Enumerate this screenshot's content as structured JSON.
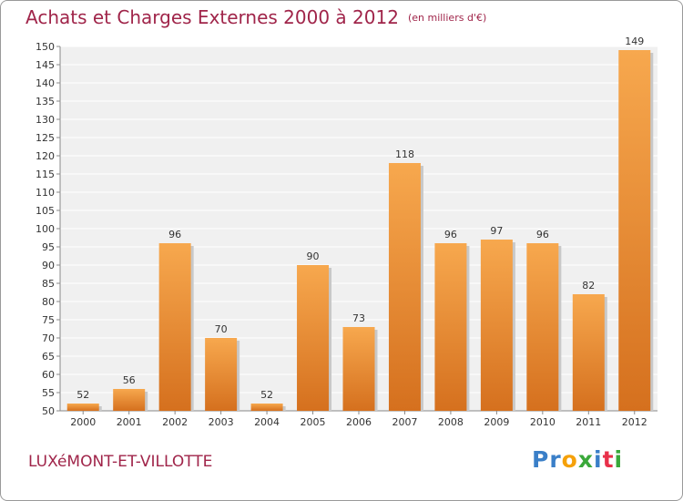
{
  "title": "Achats et Charges Externes 2000 à 2012",
  "unit": "(en milliers d'€)",
  "place": "LUXéMONT-ET-VILLOTTE",
  "logo": {
    "letters": [
      "P",
      "r",
      "o",
      "x",
      "i",
      "t",
      "i"
    ],
    "colors": [
      "#3a7fc8",
      "#3a7fc8",
      "#f5a10a",
      "#3aa83a",
      "#3a7fc8",
      "#e8304a",
      "#3aa83a"
    ]
  },
  "colors": {
    "bar_light": "#f7a84e",
    "bar_dark": "#d5701e",
    "title": "#a0254a",
    "plot_bg": "#f0f0f0",
    "grid": "#ffffff"
  },
  "chart_data": {
    "type": "bar",
    "categories": [
      "2000",
      "2001",
      "2002",
      "2003",
      "2004",
      "2005",
      "2006",
      "2007",
      "2008",
      "2009",
      "2010",
      "2011",
      "2012"
    ],
    "values": [
      52,
      56,
      96,
      70,
      52,
      90,
      73,
      118,
      96,
      97,
      96,
      82,
      149
    ],
    "data_labels": [
      "52",
      "56",
      "96",
      "70",
      "52",
      "90",
      "73",
      "118",
      "96",
      "97",
      "96",
      "82",
      "149"
    ],
    "yticks": [
      "50",
      "55",
      "60",
      "65",
      "70",
      "75",
      "80",
      "85",
      "90",
      "95",
      "100",
      "105",
      "110",
      "115",
      "120",
      "125",
      "130",
      "135",
      "140",
      "145",
      "150"
    ],
    "ylim": [
      50,
      150
    ],
    "grid": true,
    "legend": "none",
    "title": "Achats et Charges Externes 2000 à 2012",
    "xlabel": "",
    "ylabel": ""
  }
}
